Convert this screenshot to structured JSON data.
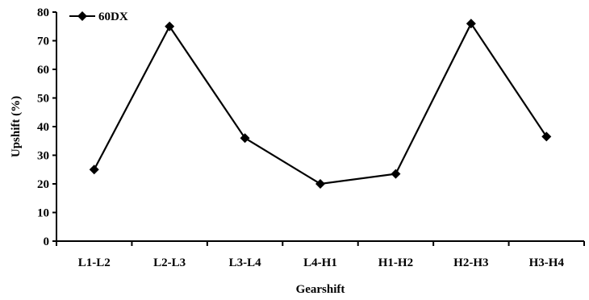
{
  "chart_data": {
    "type": "line",
    "categories": [
      "L1-L2",
      "L2-L3",
      "L3-L4",
      "L4-H1",
      "H1-H2",
      "H2-H3",
      "H3-H4"
    ],
    "series": [
      {
        "name": "60DX",
        "values": [
          25,
          75,
          36,
          20,
          23.5,
          76,
          36.5
        ],
        "color": "#000000",
        "marker": "diamond"
      }
    ],
    "xlabel": "Gearshift",
    "ylabel": "Upshift (%)",
    "ylim": [
      0,
      80
    ],
    "yticks": [
      0,
      10,
      20,
      30,
      40,
      50,
      60,
      70,
      80
    ],
    "grid": false,
    "legend_position": "top-left"
  }
}
